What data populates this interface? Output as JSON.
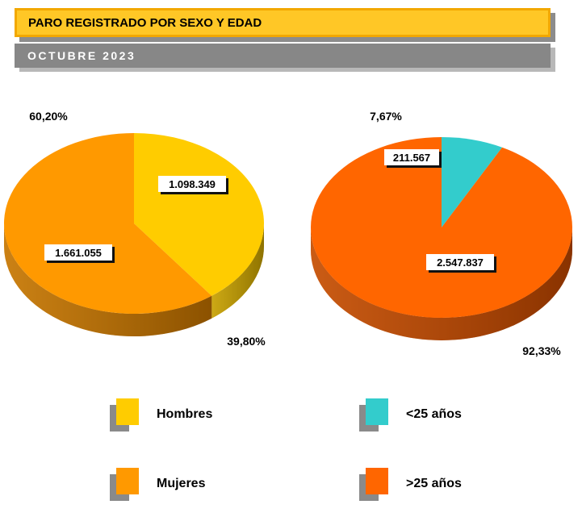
{
  "header": {
    "title": "PARO REGISTRADO POR SEXO Y EDAD",
    "subtitle": "OCTUBRE 2023"
  },
  "chart_data": [
    {
      "type": "pie",
      "title": "",
      "slices": [
        {
          "name": "Hombres",
          "value": 1098349,
          "label": "1.098.349",
          "percent_label": "39,80%",
          "color": "#ffcc00",
          "side_color": "#8f7300"
        },
        {
          "name": "Mujeres",
          "value": 1661055,
          "label": "1.661.055",
          "percent_label": "60,20%",
          "color": "#ff9900",
          "side_color": "#8c5200"
        }
      ]
    },
    {
      "type": "pie",
      "title": "",
      "slices": [
        {
          "name": "<25 años",
          "value": 211567,
          "label": "211.567",
          "percent_label": "7,67%",
          "color": "#33cccc",
          "side_color": "#1a7070"
        },
        {
          "name": ">25 años",
          "value": 2547837,
          "label": "2.547.837",
          "percent_label": "92,33%",
          "color": "#ff6600",
          "side_color": "#8a3300"
        }
      ]
    }
  ],
  "legend": [
    {
      "label": "Hombres",
      "color": "#ffcc00"
    },
    {
      "label": "<25 años",
      "color": "#33cccc"
    },
    {
      "label": "Mujeres",
      "color": "#ff9900"
    },
    {
      "label": ">25 años",
      "color": "#ff6600"
    }
  ]
}
